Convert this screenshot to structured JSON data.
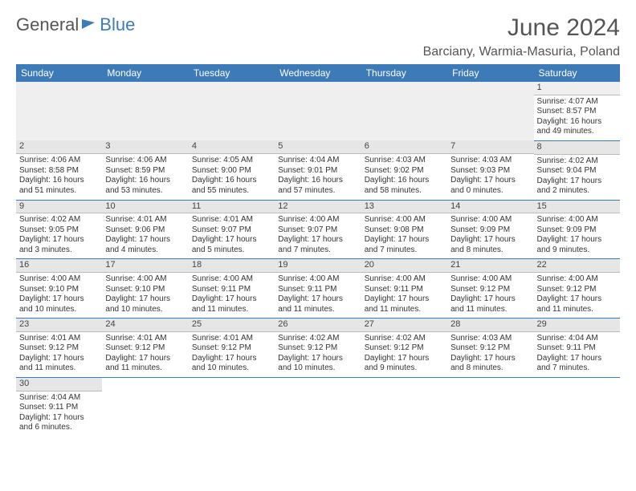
{
  "brand": {
    "left": "General",
    "right": "Blue"
  },
  "title": "June 2024",
  "location": "Barciany, Warmia-Masuria, Poland",
  "colors": {
    "header_bg": "#3d7bb8",
    "header_text": "#ffffff",
    "row_divider": "#3d7bb8",
    "daynum_bg": "#e6e6e6"
  },
  "day_names": [
    "Sunday",
    "Monday",
    "Tuesday",
    "Wednesday",
    "Thursday",
    "Friday",
    "Saturday"
  ],
  "weeks": [
    [
      null,
      null,
      null,
      null,
      null,
      null,
      {
        "d": "1",
        "sr": "4:07 AM",
        "ss": "8:57 PM",
        "dl": "16 hours and 49 minutes."
      }
    ],
    [
      {
        "d": "2",
        "sr": "4:06 AM",
        "ss": "8:58 PM",
        "dl": "16 hours and 51 minutes."
      },
      {
        "d": "3",
        "sr": "4:06 AM",
        "ss": "8:59 PM",
        "dl": "16 hours and 53 minutes."
      },
      {
        "d": "4",
        "sr": "4:05 AM",
        "ss": "9:00 PM",
        "dl": "16 hours and 55 minutes."
      },
      {
        "d": "5",
        "sr": "4:04 AM",
        "ss": "9:01 PM",
        "dl": "16 hours and 57 minutes."
      },
      {
        "d": "6",
        "sr": "4:03 AM",
        "ss": "9:02 PM",
        "dl": "16 hours and 58 minutes."
      },
      {
        "d": "7",
        "sr": "4:03 AM",
        "ss": "9:03 PM",
        "dl": "17 hours and 0 minutes."
      },
      {
        "d": "8",
        "sr": "4:02 AM",
        "ss": "9:04 PM",
        "dl": "17 hours and 2 minutes."
      }
    ],
    [
      {
        "d": "9",
        "sr": "4:02 AM",
        "ss": "9:05 PM",
        "dl": "17 hours and 3 minutes."
      },
      {
        "d": "10",
        "sr": "4:01 AM",
        "ss": "9:06 PM",
        "dl": "17 hours and 4 minutes."
      },
      {
        "d": "11",
        "sr": "4:01 AM",
        "ss": "9:07 PM",
        "dl": "17 hours and 5 minutes."
      },
      {
        "d": "12",
        "sr": "4:00 AM",
        "ss": "9:07 PM",
        "dl": "17 hours and 7 minutes."
      },
      {
        "d": "13",
        "sr": "4:00 AM",
        "ss": "9:08 PM",
        "dl": "17 hours and 7 minutes."
      },
      {
        "d": "14",
        "sr": "4:00 AM",
        "ss": "9:09 PM",
        "dl": "17 hours and 8 minutes."
      },
      {
        "d": "15",
        "sr": "4:00 AM",
        "ss": "9:09 PM",
        "dl": "17 hours and 9 minutes."
      }
    ],
    [
      {
        "d": "16",
        "sr": "4:00 AM",
        "ss": "9:10 PM",
        "dl": "17 hours and 10 minutes."
      },
      {
        "d": "17",
        "sr": "4:00 AM",
        "ss": "9:10 PM",
        "dl": "17 hours and 10 minutes."
      },
      {
        "d": "18",
        "sr": "4:00 AM",
        "ss": "9:11 PM",
        "dl": "17 hours and 11 minutes."
      },
      {
        "d": "19",
        "sr": "4:00 AM",
        "ss": "9:11 PM",
        "dl": "17 hours and 11 minutes."
      },
      {
        "d": "20",
        "sr": "4:00 AM",
        "ss": "9:11 PM",
        "dl": "17 hours and 11 minutes."
      },
      {
        "d": "21",
        "sr": "4:00 AM",
        "ss": "9:12 PM",
        "dl": "17 hours and 11 minutes."
      },
      {
        "d": "22",
        "sr": "4:00 AM",
        "ss": "9:12 PM",
        "dl": "17 hours and 11 minutes."
      }
    ],
    [
      {
        "d": "23",
        "sr": "4:01 AM",
        "ss": "9:12 PM",
        "dl": "17 hours and 11 minutes."
      },
      {
        "d": "24",
        "sr": "4:01 AM",
        "ss": "9:12 PM",
        "dl": "17 hours and 11 minutes."
      },
      {
        "d": "25",
        "sr": "4:01 AM",
        "ss": "9:12 PM",
        "dl": "17 hours and 10 minutes."
      },
      {
        "d": "26",
        "sr": "4:02 AM",
        "ss": "9:12 PM",
        "dl": "17 hours and 10 minutes."
      },
      {
        "d": "27",
        "sr": "4:02 AM",
        "ss": "9:12 PM",
        "dl": "17 hours and 9 minutes."
      },
      {
        "d": "28",
        "sr": "4:03 AM",
        "ss": "9:12 PM",
        "dl": "17 hours and 8 minutes."
      },
      {
        "d": "29",
        "sr": "4:04 AM",
        "ss": "9:11 PM",
        "dl": "17 hours and 7 minutes."
      }
    ],
    [
      {
        "d": "30",
        "sr": "4:04 AM",
        "ss": "9:11 PM",
        "dl": "17 hours and 6 minutes."
      },
      null,
      null,
      null,
      null,
      null,
      null
    ]
  ],
  "labels": {
    "sunrise": "Sunrise:",
    "sunset": "Sunset:",
    "daylight": "Daylight:"
  }
}
